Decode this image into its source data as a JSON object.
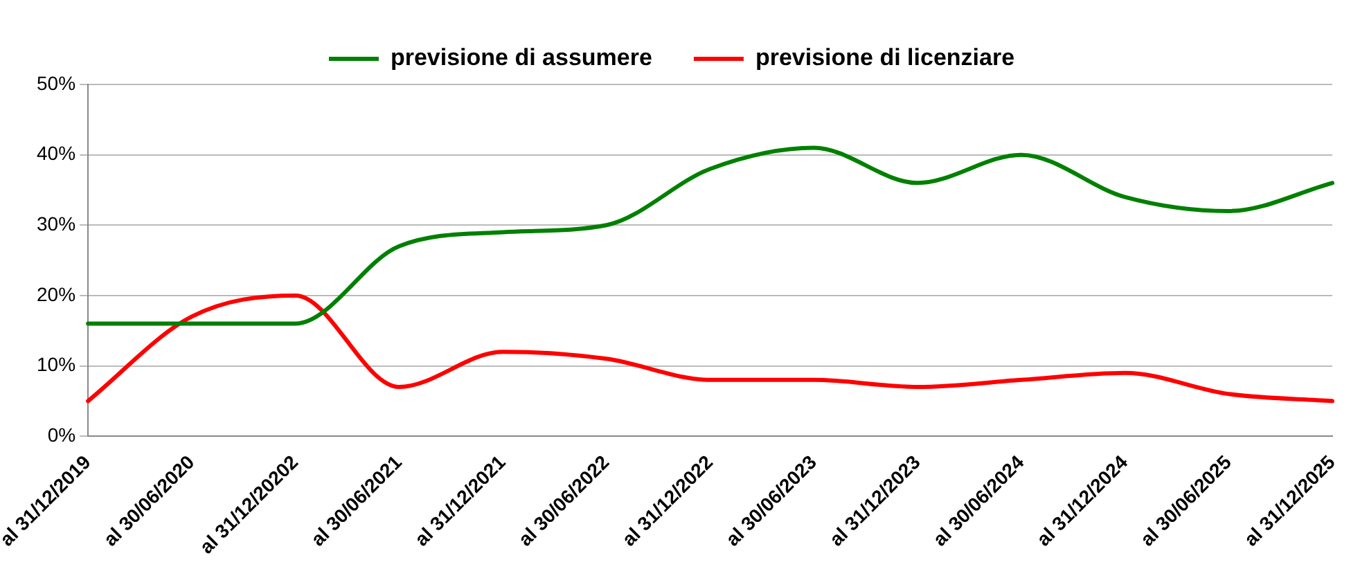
{
  "chart_data": {
    "type": "line",
    "categories": [
      "al 31/12/2019",
      "al 30/06/2020",
      "al 31/12/20202",
      "al 30/06/2021",
      "al 31/12/2021",
      "al 30/06/2022",
      "al 31/12/2022",
      "al 30/06/2023",
      "al 31/12/2023",
      "al 30/06/2024",
      "al 31/12/2024",
      "al 30/06/2025",
      "al 31/12/2025"
    ],
    "series": [
      {
        "name": "previsione di assumere",
        "color": "#008000",
        "values": [
          16,
          16,
          16,
          27,
          29,
          30,
          38,
          41,
          36,
          40,
          34,
          32,
          36
        ]
      },
      {
        "name": "previsione di licenziare",
        "color": "#ff0000",
        "values": [
          5,
          17,
          20,
          7,
          12,
          11,
          8,
          8,
          7,
          8,
          9,
          6,
          5
        ]
      }
    ],
    "ylim": [
      0,
      50
    ],
    "yticks": [
      {
        "value": 0,
        "label": "0%"
      },
      {
        "value": 10,
        "label": "10%"
      },
      {
        "value": 20,
        "label": "20%"
      },
      {
        "value": 30,
        "label": "30%"
      },
      {
        "value": 40,
        "label": "40%"
      },
      {
        "value": 50,
        "label": "50%"
      }
    ],
    "grid": "y",
    "legend": "top",
    "marker": "none"
  }
}
